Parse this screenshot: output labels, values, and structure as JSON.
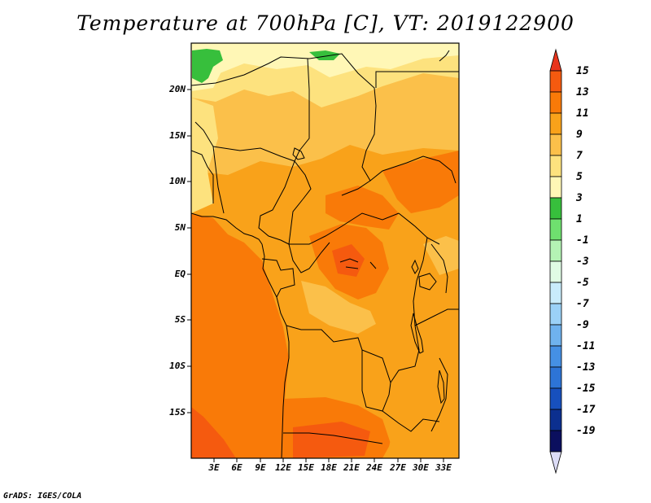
{
  "title": "Temperature at 700hPa [C], VT: 2019122900",
  "credit": "GrADS: IGES/COLA",
  "lat_labels": [
    "20N",
    "15N",
    "10N",
    "5N",
    "EQ",
    "5S",
    "10S",
    "15S"
  ],
  "lon_labels": [
    "3E",
    "6E",
    "9E",
    "12E",
    "15E",
    "18E",
    "21E",
    "24E",
    "27E",
    "30E",
    "33E"
  ],
  "colorbar": {
    "levels": [
      "15",
      "13",
      "11",
      "9",
      "7",
      "5",
      "3",
      "1",
      "-1",
      "-3",
      "-5",
      "-7",
      "-9",
      "-11",
      "-13",
      "-15",
      "-17",
      "-19"
    ],
    "colors": [
      "#e8341c",
      "#f55a0f",
      "#f97a08",
      "#f9a21a",
      "#fbc04a",
      "#fde27e",
      "#fff7b6",
      "#37bf3c",
      "#6fe06f",
      "#b4f3b4",
      "#e0fbe4",
      "#c9ecfb",
      "#9bd1f7",
      "#6fb2ee",
      "#4590e4",
      "#2d74d6",
      "#1750bd",
      "#0c2f8f",
      "#0b0f5e",
      "#dcdcf6"
    ]
  },
  "field_colors": {
    "t5": "#fde27e",
    "t3": "#fff7b6",
    "t1": "#37bf3c",
    "t7": "#fbc04a",
    "t9": "#f9a21a",
    "t11": "#f97a08",
    "t13": "#f55a0f"
  }
}
